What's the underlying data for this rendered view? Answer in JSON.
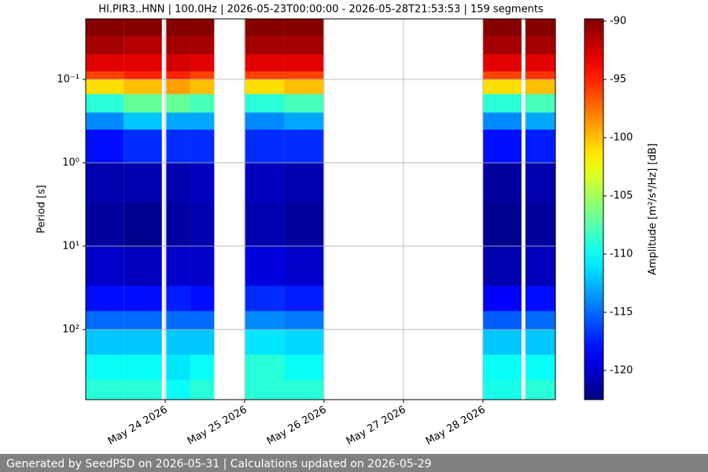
{
  "chart_data": {
    "type": "heatmap",
    "title": "HI.PIR3..HNN | 100.0Hz | 2026-05-23T00:00:00 - 2026-05-28T21:53:53 | 159 segments",
    "ylabel": "Period [s]",
    "colorbar_label": "Amplitude [m²/s⁴/Hz] [dB]",
    "colormap": "jet",
    "grid": true,
    "ylog": true,
    "y_inverted": true,
    "xlim": [
      "2026-05-23T00:00:00",
      "2026-05-28T21:53:53"
    ],
    "xticks": [
      {
        "value": "2026-05-24T00:00:00",
        "label": "May 24 2026"
      },
      {
        "value": "2026-05-25T00:00:00",
        "label": "May 25 2026"
      },
      {
        "value": "2026-05-26T00:00:00",
        "label": "May 26 2026"
      },
      {
        "value": "2026-05-27T00:00:00",
        "label": "May 27 2026"
      },
      {
        "value": "2026-05-28T00:00:00",
        "label": "May 28 2026"
      }
    ],
    "ylim": [
      0.0188,
      692
    ],
    "yticks": [
      {
        "value": 0.1,
        "label": "10⁻¹"
      },
      {
        "value": 1,
        "label": "10⁰"
      },
      {
        "value": 10,
        "label": "10¹"
      },
      {
        "value": 100,
        "label": "10²"
      }
    ],
    "zlim": [
      -122.5,
      -89.8
    ],
    "zticks": [
      -90,
      -95,
      -100,
      -105,
      -110,
      -115,
      -120
    ],
    "y_edges": [
      0.0188,
      0.03,
      0.05,
      0.08,
      0.1,
      0.15,
      0.25,
      0.4,
      1,
      3,
      10,
      30,
      60,
      100,
      200,
      400,
      692
    ],
    "columns": [
      {
        "start": "2026-05-23T00:00:00",
        "end": "2026-05-23T11:30:00",
        "values": [
          -90,
          -91,
          -93,
          -96,
          -101,
          -109,
          -114,
          -118,
          -121,
          -121.5,
          -120,
          -118,
          -115,
          -112,
          -110,
          -109
        ]
      },
      {
        "start": "2026-05-23T11:30:00",
        "end": "2026-05-23T23:00:00",
        "values": [
          -90,
          -91.5,
          -93,
          -95,
          -100,
          -107,
          -112,
          -117,
          -121,
          -122,
          -120.5,
          -118,
          -115,
          -112,
          -110,
          -109
        ]
      },
      {
        "start": "2026-05-24T00:20:00",
        "end": "2026-05-24T07:30:00",
        "values": [
          -90,
          -91,
          -92.5,
          -95,
          -99,
          -107,
          -113,
          -117,
          -121,
          -121.5,
          -120,
          -117.5,
          -115,
          -112,
          -111,
          -110
        ]
      },
      {
        "start": "2026-05-24T07:30:00",
        "end": "2026-05-24T14:50:00",
        "values": [
          -90,
          -91,
          -93,
          -96,
          -100,
          -108,
          -113,
          -117,
          -120.5,
          -121,
          -120,
          -118,
          -115,
          -112,
          -110,
          -109
        ]
      },
      {
        "start": "2026-05-25T00:10:00",
        "end": "2026-05-25T12:00:00",
        "values": [
          -90,
          -91,
          -93,
          -96,
          -101,
          -109,
          -114,
          -117,
          -120.5,
          -121,
          -119.5,
          -117,
          -114,
          -111,
          -109,
          -109
        ]
      },
      {
        "start": "2026-05-25T12:00:00",
        "end": "2026-05-25T23:50:00",
        "values": [
          -90,
          -91,
          -93,
          -96,
          -100,
          -108,
          -113,
          -117,
          -121,
          -121.5,
          -120,
          -117.5,
          -114.5,
          -111.5,
          -110,
          -109
        ]
      },
      {
        "start": "2026-05-28T00:00:00",
        "end": "2026-05-28T11:40:00",
        "values": [
          -90,
          -91,
          -93,
          -96,
          -101,
          -109,
          -114,
          -118,
          -121.5,
          -122,
          -121,
          -118.5,
          -115.5,
          -112,
          -110,
          -109.5
        ]
      },
      {
        "start": "2026-05-28T12:50:00",
        "end": "2026-05-28T21:53:53",
        "values": [
          -90,
          -91,
          -93,
          -95.5,
          -100,
          -108,
          -113,
          -117.5,
          -121,
          -121.5,
          -120.5,
          -118,
          -115,
          -112,
          -110,
          -109
        ]
      }
    ]
  },
  "footer": "Generated by SeedPSD on 2026-05-31 | Calculations updated on 2026-05-29"
}
